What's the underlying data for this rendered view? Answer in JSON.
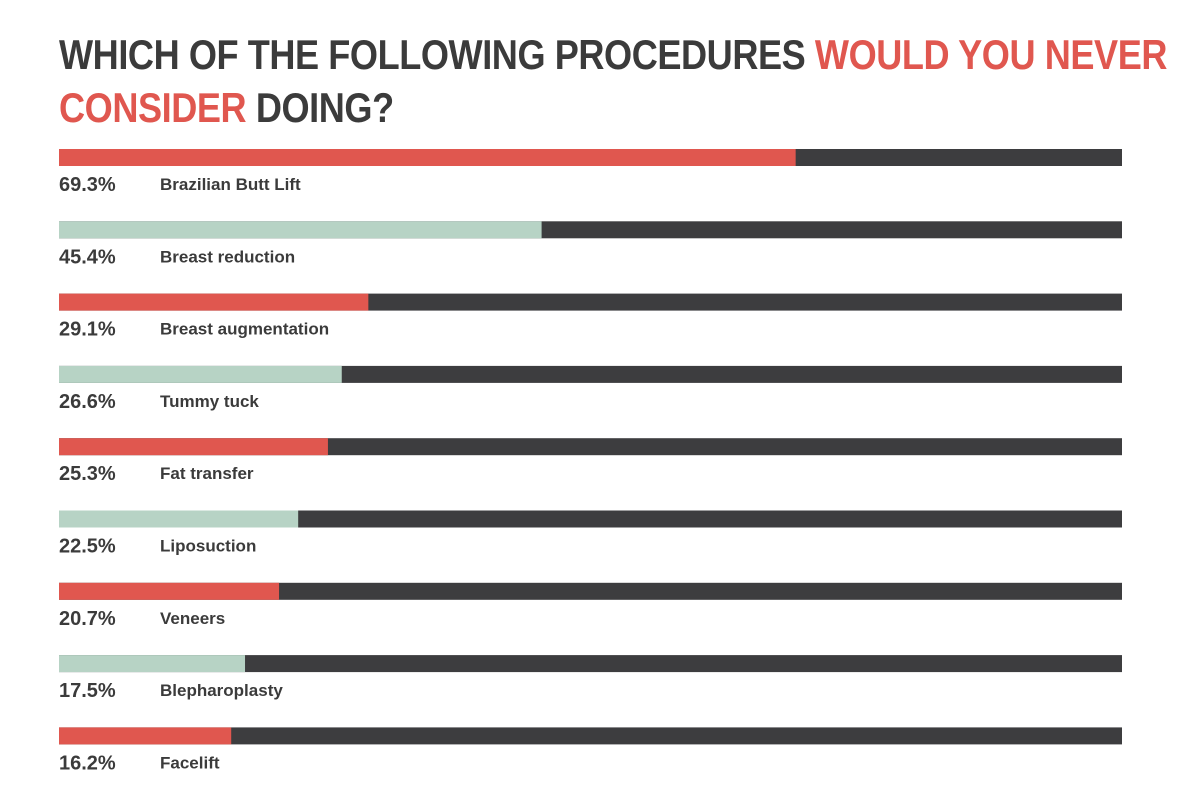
{
  "title": {
    "part1": "WHICH OF THE FOLLOWING PROCEDURES ",
    "highlight1": "WOULD YOU NEVER",
    "highlight2": "CONSIDER",
    "part2": " DOING?"
  },
  "colors": {
    "accent_red": "#e0574f",
    "accent_green": "#b7d3c5",
    "track": "#3d3d3f",
    "text": "#3b3b3b"
  },
  "chart_data": {
    "type": "bar",
    "orientation": "horizontal",
    "title": "WHICH OF THE FOLLOWING PROCEDURES WOULD YOU NEVER CONSIDER DOING?",
    "xlim": [
      0,
      100
    ],
    "unit": "%",
    "categories": [
      "Brazilian Butt Lift",
      "Breast reduction",
      "Breast augmentation",
      "Tummy tuck",
      "Fat transfer",
      "Liposuction",
      "Veneers",
      "Blepharoplasty",
      "Facelift"
    ],
    "values": [
      69.3,
      45.4,
      29.1,
      26.6,
      25.3,
      22.5,
      20.7,
      17.5,
      16.2
    ],
    "labels": [
      "69.3%",
      "45.4%",
      "29.1%",
      "26.6%",
      "25.3%",
      "22.5%",
      "20.7%",
      "17.5%",
      "16.2%"
    ],
    "bar_colors": [
      "red",
      "green",
      "red",
      "green",
      "red",
      "green",
      "red",
      "green",
      "red"
    ]
  }
}
